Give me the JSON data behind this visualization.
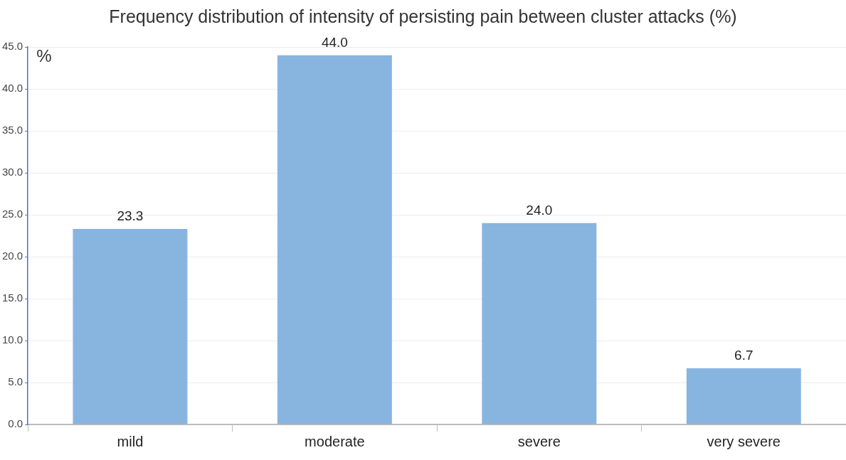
{
  "chart_data": {
    "type": "bar",
    "title": "Frequency distribution of intensity of persisting pain between cluster attacks (%)",
    "ylabel": "%",
    "categories": [
      "mild",
      "moderate",
      "severe",
      "very severe"
    ],
    "values": [
      23.3,
      44.0,
      24.0,
      6.7
    ],
    "color": "#88b4e0",
    "ylim": [
      0,
      45
    ],
    "yticks": [
      {
        "value": 0,
        "label": "0.0"
      },
      {
        "value": 5,
        "label": "5.0"
      },
      {
        "value": 10,
        "label": "10.0"
      },
      {
        "value": 15,
        "label": "15.0"
      },
      {
        "value": 20,
        "label": "20.0"
      },
      {
        "value": 25,
        "label": "25.0"
      },
      {
        "value": 30,
        "label": "30.0"
      },
      {
        "value": 35,
        "label": "35.0"
      },
      {
        "value": 40,
        "label": "40.0"
      },
      {
        "value": 45,
        "label": "45.0"
      }
    ],
    "value_labels": [
      "23.3",
      "44.0",
      "24.0",
      "6.7"
    ],
    "grid": "y",
    "legend": false
  }
}
